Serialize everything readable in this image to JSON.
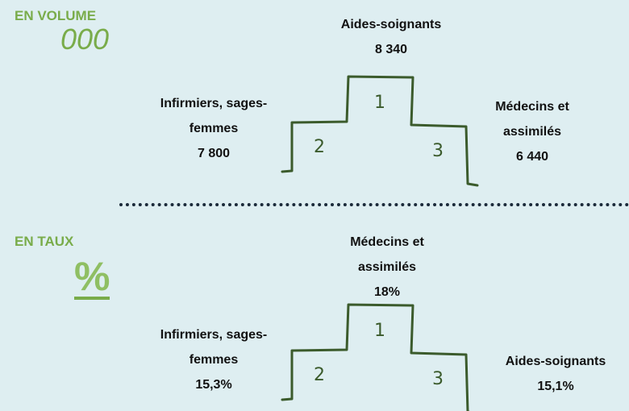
{
  "sections": [
    {
      "title": "EN VOLUME",
      "icon": "000",
      "podium": [
        {
          "rank": "1",
          "label": "Aides-soignants",
          "value": "8 340"
        },
        {
          "rank": "2",
          "label": "Infirmiers, sages-femmes",
          "value": "7 800"
        },
        {
          "rank": "3",
          "label": "Médecins et assimilés",
          "value": "6 440"
        }
      ]
    },
    {
      "title": "EN TAUX",
      "icon": "%",
      "podium": [
        {
          "rank": "1",
          "label": "Médecins et assimilés",
          "value": "18%"
        },
        {
          "rank": "2",
          "label": "Infirmiers, sages-femmes",
          "value": "15,3%"
        },
        {
          "rank": "3",
          "label": "Aides-soignants",
          "value": "15,1%"
        }
      ]
    }
  ]
}
